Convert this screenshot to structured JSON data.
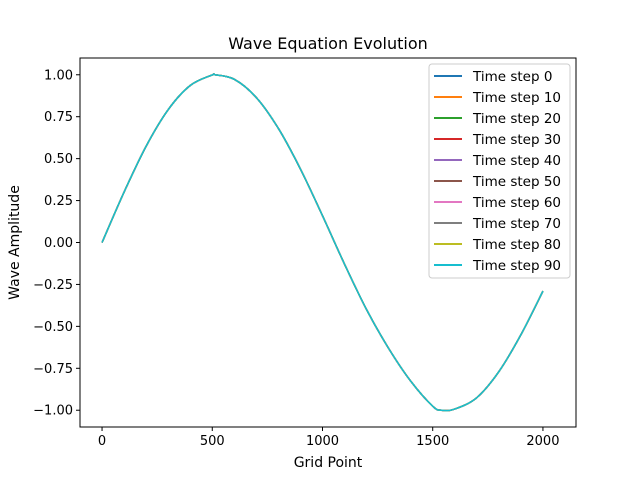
{
  "chart_data": {
    "type": "line",
    "title": "Wave Equation Evolution",
    "xlabel": "Grid Point",
    "ylabel": "Wave Amplitude",
    "xlim": [
      -100,
      2150
    ],
    "ylim": [
      -1.1,
      1.1
    ],
    "x_ticks": [
      0,
      500,
      1000,
      1500,
      2000
    ],
    "y_ticks": [
      -1.0,
      -0.75,
      -0.5,
      -0.25,
      0.0,
      0.25,
      0.5,
      0.75,
      1.0
    ],
    "x_tick_labels": [
      "0",
      "500",
      "1000",
      "1500",
      "2000"
    ],
    "y_tick_labels": [
      "−1.00",
      "−0.75",
      "−0.50",
      "−0.25",
      "0.00",
      "0.25",
      "0.50",
      "0.75",
      "1.00"
    ],
    "grid": false,
    "legend_position": "top-right",
    "x": [
      0,
      100,
      200,
      300,
      400,
      500,
      513,
      600,
      700,
      800,
      900,
      1000,
      1100,
      1200,
      1300,
      1400,
      1500,
      1540,
      1600,
      1700,
      1800,
      1900,
      2000
    ],
    "series": [
      {
        "name": "Time step 0",
        "color": "#1f77b4",
        "values": [
          0.0,
          0.301,
          0.574,
          0.792,
          0.936,
          0.999,
          1.0,
          0.973,
          0.864,
          0.68,
          0.438,
          0.16,
          -0.129,
          -0.4,
          -0.631,
          -0.826,
          -0.976,
          -1.0,
          -0.993,
          -0.925,
          -0.77,
          -0.55,
          -0.29
        ]
      },
      {
        "name": "Time step 10",
        "color": "#ff7f0e",
        "values": [
          0.0,
          0.301,
          0.574,
          0.792,
          0.936,
          0.999,
          1.0,
          0.973,
          0.864,
          0.68,
          0.438,
          0.16,
          -0.129,
          -0.4,
          -0.631,
          -0.826,
          -0.976,
          -1.0,
          -0.993,
          -0.925,
          -0.77,
          -0.55,
          -0.29
        ]
      },
      {
        "name": "Time step 20",
        "color": "#2ca02c",
        "values": [
          0.0,
          0.301,
          0.574,
          0.792,
          0.936,
          0.999,
          1.0,
          0.973,
          0.864,
          0.68,
          0.438,
          0.16,
          -0.129,
          -0.4,
          -0.631,
          -0.826,
          -0.976,
          -1.0,
          -0.993,
          -0.925,
          -0.77,
          -0.55,
          -0.29
        ]
      },
      {
        "name": "Time step 30",
        "color": "#d62728",
        "values": [
          0.0,
          0.301,
          0.574,
          0.792,
          0.936,
          0.999,
          1.0,
          0.973,
          0.864,
          0.68,
          0.438,
          0.16,
          -0.129,
          -0.4,
          -0.631,
          -0.826,
          -0.976,
          -1.0,
          -0.993,
          -0.925,
          -0.77,
          -0.55,
          -0.29
        ]
      },
      {
        "name": "Time step 40",
        "color": "#9467bd",
        "values": [
          0.0,
          0.301,
          0.574,
          0.792,
          0.936,
          0.999,
          1.0,
          0.973,
          0.864,
          0.68,
          0.438,
          0.16,
          -0.129,
          -0.4,
          -0.631,
          -0.826,
          -0.976,
          -1.0,
          -0.993,
          -0.925,
          -0.77,
          -0.55,
          -0.29
        ]
      },
      {
        "name": "Time step 50",
        "color": "#8c564b",
        "values": [
          0.0,
          0.301,
          0.574,
          0.792,
          0.936,
          0.999,
          1.0,
          0.973,
          0.864,
          0.68,
          0.438,
          0.16,
          -0.129,
          -0.4,
          -0.631,
          -0.826,
          -0.976,
          -1.0,
          -0.993,
          -0.925,
          -0.77,
          -0.55,
          -0.29
        ]
      },
      {
        "name": "Time step 60",
        "color": "#e377c2",
        "values": [
          0.0,
          0.301,
          0.574,
          0.792,
          0.936,
          0.999,
          1.0,
          0.973,
          0.864,
          0.68,
          0.438,
          0.16,
          -0.129,
          -0.4,
          -0.631,
          -0.826,
          -0.976,
          -1.0,
          -0.993,
          -0.925,
          -0.77,
          -0.55,
          -0.29
        ]
      },
      {
        "name": "Time step 70",
        "color": "#7f7f7f",
        "values": [
          0.0,
          0.301,
          0.574,
          0.792,
          0.936,
          0.999,
          1.0,
          0.973,
          0.864,
          0.68,
          0.438,
          0.16,
          -0.129,
          -0.4,
          -0.631,
          -0.826,
          -0.976,
          -1.0,
          -0.993,
          -0.925,
          -0.77,
          -0.55,
          -0.29
        ]
      },
      {
        "name": "Time step 80",
        "color": "#bcbd22",
        "values": [
          0.0,
          0.301,
          0.574,
          0.792,
          0.936,
          0.999,
          1.0,
          0.973,
          0.864,
          0.68,
          0.438,
          0.16,
          -0.129,
          -0.4,
          -0.631,
          -0.826,
          -0.976,
          -1.0,
          -0.993,
          -0.925,
          -0.77,
          -0.55,
          -0.29
        ]
      },
      {
        "name": "Time step 90",
        "color": "#17becf",
        "values": [
          0.0,
          0.301,
          0.574,
          0.792,
          0.936,
          0.999,
          1.0,
          0.973,
          0.864,
          0.68,
          0.438,
          0.16,
          -0.129,
          -0.4,
          -0.631,
          -0.826,
          -0.976,
          -1.0,
          -0.993,
          -0.925,
          -0.77,
          -0.55,
          -0.29
        ]
      }
    ]
  }
}
